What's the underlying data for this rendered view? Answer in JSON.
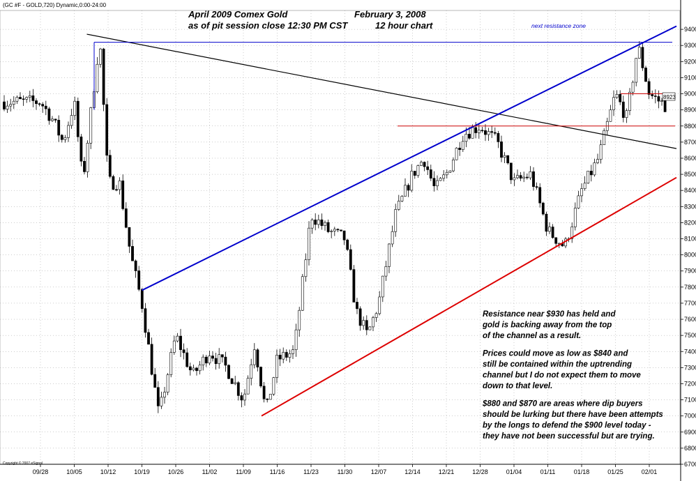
{
  "header": {
    "symbol_line": "(GC #F - GOLD,720) Dynamic,0:00-24:00",
    "title_left_1": "April 2009 Comex Gold",
    "title_left_2": "as of pit session close 12:30 PM CST",
    "title_right_1": "February 3, 2008",
    "title_right_2": "12 hour chart"
  },
  "annotations": {
    "resistance_zone": "next resistance zone",
    "price_flag": "8923",
    "copyright": "Copyright © 2007 eSignal"
  },
  "commentary": [
    "Resistance near $930 has held and",
    "gold is backing away from the top",
    "of the channel as a result.",
    "",
    "Prices could move as low as $840 and",
    "still be contained within the uptrending",
    "channel but I do not expect them to move",
    "down to that level.",
    "",
    "$880 and $870 are areas where dip buyers",
    "should be lurking but there have been attempts",
    "by the longs to defend the $900 level today -",
    "they have not been successful but are trying."
  ],
  "chart_data": {
    "type": "candlestick",
    "ylim": [
      6700,
      9500
    ],
    "grid": true,
    "y_ticks": [
      "9400",
      "9300",
      "9200",
      "9100",
      "9000",
      "8900",
      "8800",
      "8700",
      "8600",
      "8500",
      "8400",
      "8300",
      "8200",
      "8100",
      "8000",
      "7900",
      "7800",
      "7700",
      "7600",
      "7500",
      "7400",
      "7300",
      "7200",
      "7100",
      "7000",
      "6900",
      "6800",
      "6700"
    ],
    "x_ticks": [
      "09/28",
      "10/05",
      "10/12",
      "10/19",
      "10/26",
      "11/02",
      "11/09",
      "11/16",
      "11/23",
      "11/30",
      "12/07",
      "12/14",
      "12/21",
      "12/28",
      "01/04",
      "01/11",
      "01/18",
      "01/25",
      "02/01"
    ],
    "anchors": [
      {
        "label": "09/28",
        "v": 8950
      },
      {
        "label": "09/28",
        "v": 8850
      },
      {
        "label": "09/28",
        "v": 8700
      },
      {
        "label": "10/05",
        "v": 8950
      },
      {
        "label": "10/05",
        "v": 8450
      },
      {
        "label": "10/05",
        "v": 8900
      },
      {
        "label": "10/05",
        "v": 9350
      },
      {
        "label": "10/12",
        "v": 8450
      },
      {
        "label": "10/12",
        "v": 8450
      },
      {
        "label": "10/12",
        "v": 8000
      },
      {
        "label": "10/19",
        "v": 7700
      },
      {
        "label": "10/19",
        "v": 7000
      },
      {
        "label": "10/26",
        "v": 7500
      },
      {
        "label": "10/26",
        "v": 7250
      },
      {
        "label": "11/02",
        "v": 7400
      },
      {
        "label": "11/02",
        "v": 7300
      },
      {
        "label": "11/09",
        "v": 7100
      },
      {
        "label": "11/09",
        "v": 7450
      },
      {
        "label": "11/09",
        "v": 7020
      },
      {
        "label": "11/16",
        "v": 7350
      },
      {
        "label": "11/16",
        "v": 7400
      },
      {
        "label": "11/23",
        "v": 8250
      },
      {
        "label": "11/23",
        "v": 8150
      },
      {
        "label": "11/30",
        "v": 8100
      },
      {
        "label": "11/30",
        "v": 7650
      },
      {
        "label": "11/30",
        "v": 7500
      },
      {
        "label": "12/07",
        "v": 7700
      },
      {
        "label": "12/07",
        "v": 8250
      },
      {
        "label": "12/14",
        "v": 8500
      },
      {
        "label": "12/14",
        "v": 8600
      },
      {
        "label": "12/14",
        "v": 8400
      },
      {
        "label": "12/21",
        "v": 8500
      },
      {
        "label": "12/21",
        "v": 8750
      },
      {
        "label": "12/28",
        "v": 8800
      },
      {
        "label": "12/28",
        "v": 8700
      },
      {
        "label": "01/04",
        "v": 8450
      },
      {
        "label": "01/04",
        "v": 8500
      },
      {
        "label": "01/11",
        "v": 8150
      },
      {
        "label": "01/11",
        "v": 8050
      },
      {
        "label": "01/18",
        "v": 8400
      },
      {
        "label": "01/18",
        "v": 8600
      },
      {
        "label": "01/25",
        "v": 9000
      },
      {
        "label": "01/25",
        "v": 8850
      },
      {
        "label": "01/25",
        "v": 9300
      },
      {
        "label": "02/01",
        "v": 9000
      },
      {
        "label": "02/01",
        "v": 8923
      }
    ],
    "trendlines": [
      {
        "name": "descending",
        "color": "#000000",
        "from": {
          "x": "10/05",
          "v": 9370
        },
        "to": {
          "x": "02/01",
          "v": 8660
        }
      },
      {
        "name": "channel-top",
        "color": "#0000cc",
        "from": {
          "x": "10/19",
          "v": 7780
        },
        "to": {
          "x": "02/01",
          "v": 9420
        }
      },
      {
        "name": "channel-bottom",
        "color": "#dd0000",
        "from": {
          "x": "11/09",
          "v": 7000
        },
        "to": {
          "x": "02/01",
          "v": 8480
        }
      }
    ],
    "h_lines": [
      {
        "name": "resistance",
        "color": "#0000cc",
        "v": 9320
      },
      {
        "name": "level-8800",
        "color": "#cc0000",
        "v": 8800
      },
      {
        "name": "level-9000",
        "color": "#cc0000",
        "v": 9000
      }
    ]
  }
}
